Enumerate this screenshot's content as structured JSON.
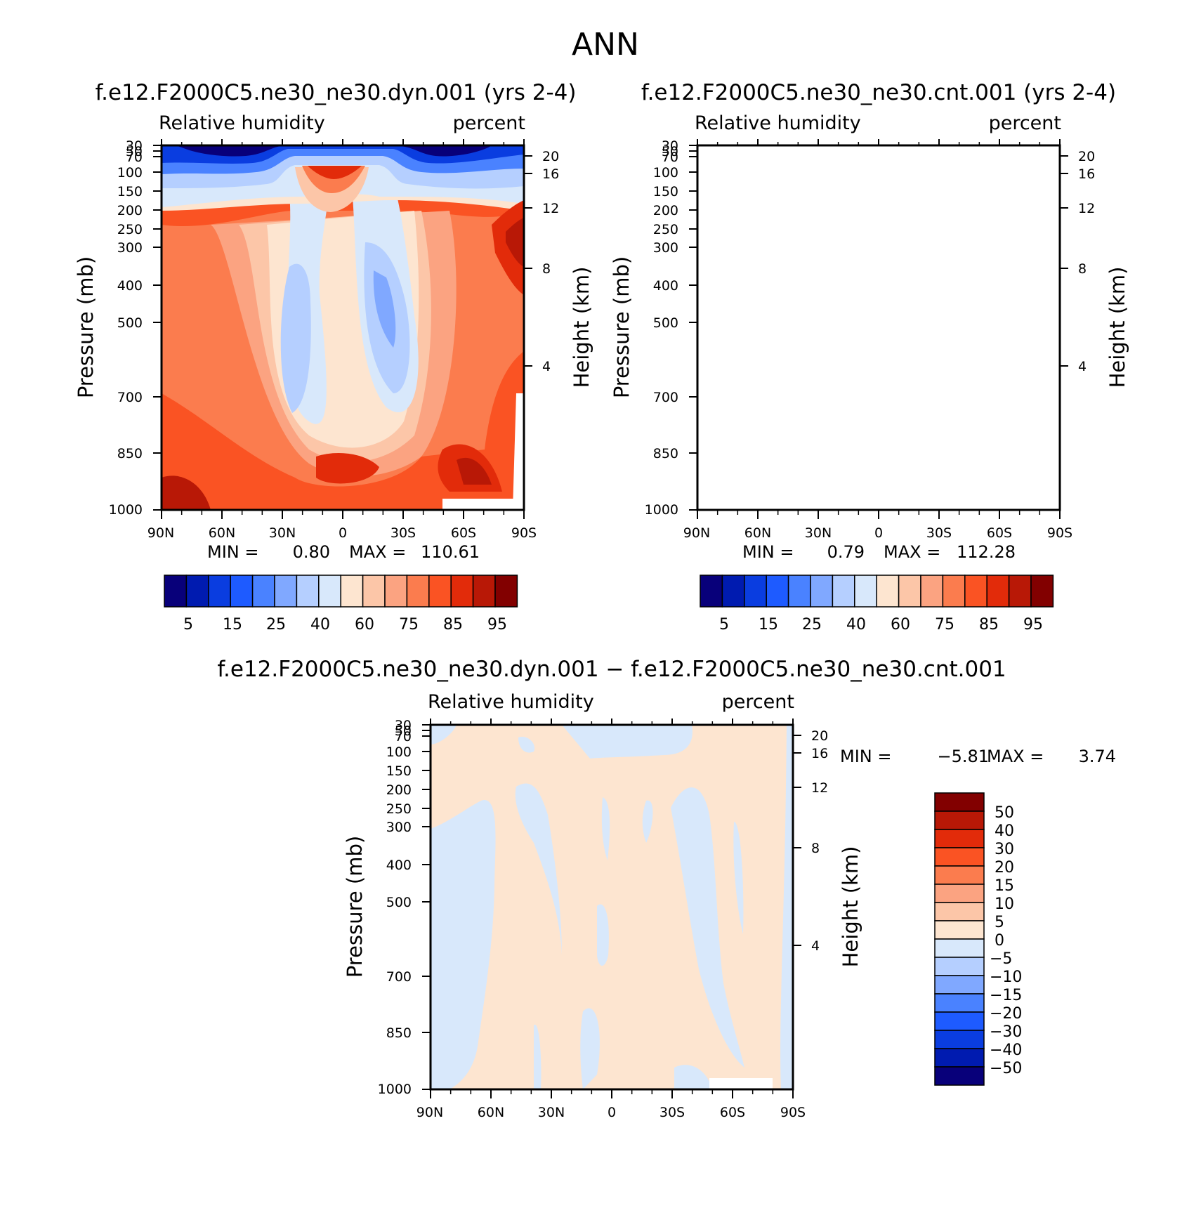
{
  "main_title": "ANN",
  "chart_data": [
    {
      "type": "contour",
      "title": "f.e12.F2000C5.ne30_ne30.dyn.001 (yrs 2-4)",
      "left_string": "Relative humidity",
      "right_string": "percent",
      "xlabel": "",
      "ylabel": "Pressure (mb)",
      "ylabel_right": "Height (km)",
      "x_ticklabels": [
        "90N",
        "60N",
        "30N",
        "0",
        "30S",
        "60S",
        "90S"
      ],
      "y_ticklabels": [
        "30",
        "50",
        "70",
        "100",
        "150",
        "200",
        "250",
        "300",
        "400",
        "500",
        "700",
        "850",
        "1000"
      ],
      "height_ticklabels": [
        "20",
        "16",
        "12",
        "8",
        "4"
      ],
      "min_label": "MIN =",
      "min_value": "0.80",
      "max_label": "MAX =",
      "max_value": "110.61",
      "colorbar_labels": [
        "5",
        "15",
        "25",
        "40",
        "60",
        "75",
        "85",
        "95"
      ]
    },
    {
      "type": "contour",
      "title": "f.e12.F2000C5.ne30_ne30.cnt.001 (yrs 2-4)",
      "left_string": "Relative humidity",
      "right_string": "percent",
      "xlabel": "",
      "ylabel": "Pressure (mb)",
      "ylabel_right": "Height (km)",
      "x_ticklabels": [
        "90N",
        "60N",
        "30N",
        "0",
        "30S",
        "60S",
        "90S"
      ],
      "y_ticklabels": [
        "30",
        "50",
        "70",
        "100",
        "150",
        "200",
        "250",
        "300",
        "400",
        "500",
        "700",
        "850",
        "1000"
      ],
      "height_ticklabels": [
        "20",
        "16",
        "12",
        "8",
        "4"
      ],
      "min_label": "MIN =",
      "min_value": "0.79",
      "max_label": "MAX =",
      "max_value": "112.28",
      "colorbar_labels": [
        "5",
        "15",
        "25",
        "40",
        "60",
        "75",
        "85",
        "95"
      ]
    },
    {
      "type": "contour",
      "title": "f.e12.F2000C5.ne30_ne30.dyn.001 - f.e12.F2000C5.ne30_ne30.cnt.001",
      "left_string": "Relative humidity",
      "right_string": "percent",
      "xlabel": "",
      "ylabel": "Pressure (mb)",
      "ylabel_right": "Height (km)",
      "x_ticklabels": [
        "90N",
        "60N",
        "30N",
        "0",
        "30S",
        "60S",
        "90S"
      ],
      "y_ticklabels": [
        "30",
        "50",
        "70",
        "100",
        "150",
        "200",
        "250",
        "300",
        "400",
        "500",
        "700",
        "850",
        "1000"
      ],
      "height_ticklabels": [
        "20",
        "16",
        "12",
        "8",
        "4"
      ],
      "min_label": "MIN =",
      "min_value": "-5.81",
      "max_label": "MAX =",
      "max_value": "3.74",
      "colorbar_labels": [
        "50",
        "40",
        "30",
        "20",
        "15",
        "10",
        "5",
        "0",
        "-5",
        "-10",
        "-15",
        "-20",
        "-30",
        "-40",
        "-50"
      ]
    }
  ],
  "colors": {
    "levels16": [
      "#08007a",
      "#001bb0",
      "#0a3de0",
      "#1e5bff",
      "#4a82ff",
      "#80a8ff",
      "#b5cfff",
      "#d8e8fb",
      "#fde5d0",
      "#fcc6a8",
      "#fba381",
      "#fb7c4e",
      "#fa5323",
      "#e22b0a",
      "#b81806",
      "#820000"
    ],
    "diff_levels": [
      "#820000",
      "#b81806",
      "#e22b0a",
      "#fa5323",
      "#fb7c4e",
      "#fba381",
      "#fcc6a8",
      "#fde5d0",
      "#d8e8fb",
      "#b5cfff",
      "#80a8ff",
      "#4a82ff",
      "#1e5bff",
      "#0a3de0",
      "#001bb0",
      "#08007a"
    ]
  }
}
